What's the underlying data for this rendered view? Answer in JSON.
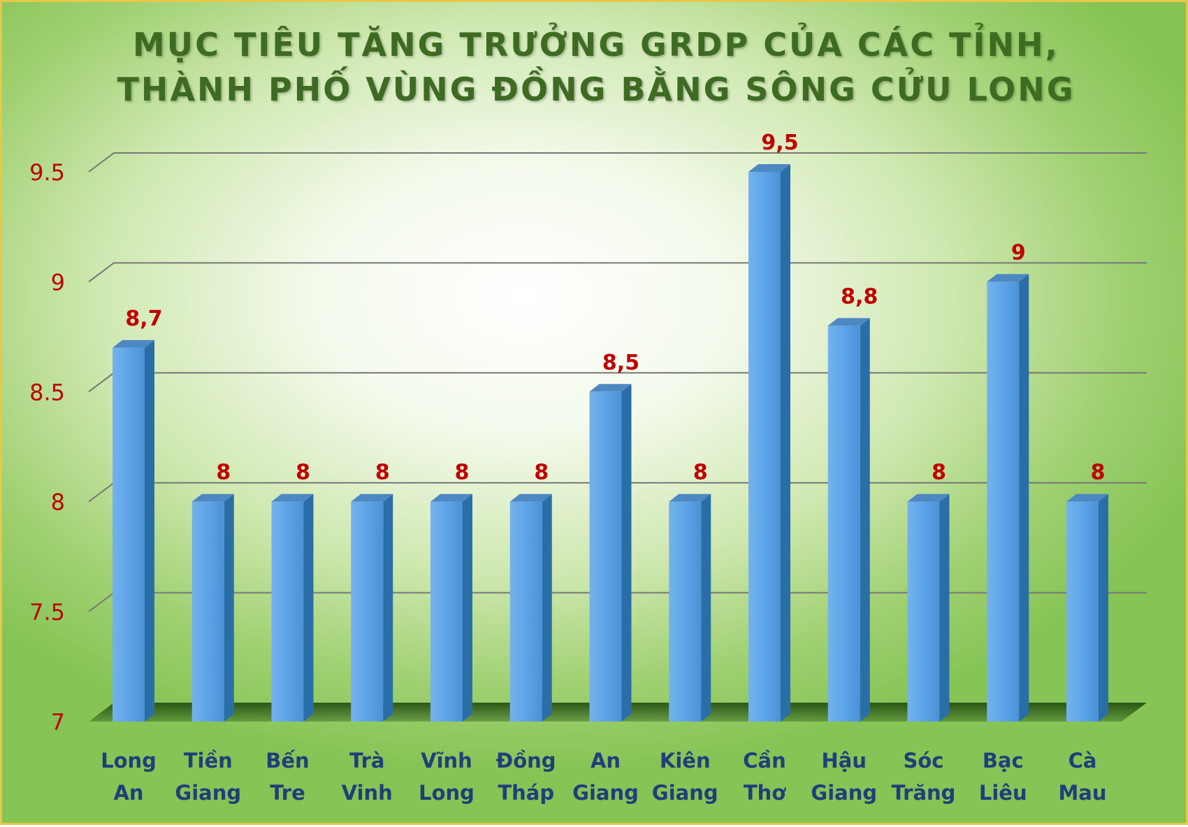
{
  "title_lines": [
    "MỤC TIÊU TĂNG TRƯỞNG GRDP CỦA CÁC TỈNH,",
    "THÀNH PHỐ VÙNG ĐỒNG BẰNG SÔNG CỬU LONG"
  ],
  "colors": {
    "bar_front": "#5ba3e6",
    "bar_side": "#2a6ea8",
    "bar_top": "#4d88c2",
    "axis_label": "#c00000",
    "data_label": "#c00000",
    "category_label": "#1f3f7a",
    "gridline": "#777777",
    "floor": "#1f4a0e"
  },
  "chart_data": {
    "type": "bar",
    "title": "MỤC TIÊU TĂNG TRƯỞNG GRDP CỦA CÁC TỈNH, THÀNH PHỐ VÙNG ĐỒNG BẰNG SÔNG CỬU LONG",
    "categories": [
      [
        "Long",
        "An"
      ],
      [
        "Tiền",
        "Giang"
      ],
      [
        "Bến",
        "Tre"
      ],
      [
        "Trà",
        "Vinh"
      ],
      [
        "Vĩnh",
        "Long"
      ],
      [
        "Đồng",
        "Tháp"
      ],
      [
        "An",
        "Giang"
      ],
      [
        "Kiên",
        "Giang"
      ],
      [
        "Cần",
        "Thơ"
      ],
      [
        "Hậu",
        "Giang"
      ],
      [
        "Sóc",
        "Trăng"
      ],
      [
        "Bạc",
        "Liêu"
      ],
      [
        "Cà",
        "Mau"
      ]
    ],
    "values": [
      8.7,
      8,
      8,
      8,
      8,
      8,
      8.5,
      8,
      9.5,
      8.8,
      8,
      9,
      8
    ],
    "data_labels": [
      "8,7",
      "8",
      "8",
      "8",
      "8",
      "8",
      "8,5",
      "8",
      "9,5",
      "8,8",
      "8",
      "9",
      "8"
    ],
    "ylim": [
      7,
      9.5
    ],
    "yticks": [
      "7",
      "7.5",
      "8",
      "8.5",
      "9",
      "9.5"
    ],
    "grid": true,
    "three_d": true,
    "legend": "none"
  }
}
